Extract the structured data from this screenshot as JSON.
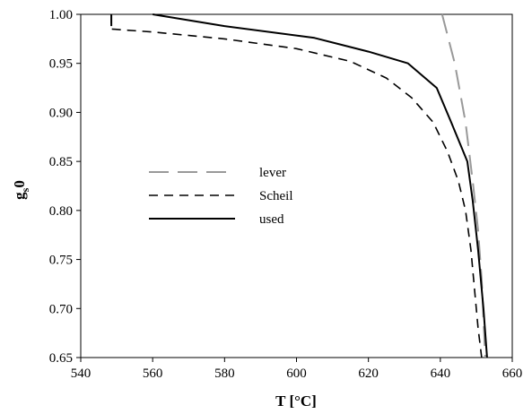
{
  "chart_data": {
    "type": "line",
    "title": "",
    "xlabel": "T [°C]",
    "ylabel_main": "g",
    "ylabel_sub": "s",
    "ylabel_tail": "0",
    "xlim": [
      540,
      660
    ],
    "ylim": [
      0.65,
      1.0
    ],
    "x_ticks": [
      540,
      560,
      580,
      600,
      620,
      640,
      660
    ],
    "y_ticks": [
      0.65,
      0.7,
      0.75,
      0.8,
      0.85,
      0.9,
      0.95,
      1.0
    ],
    "x_tick_labels": [
      "540",
      "560",
      "580",
      "600",
      "620",
      "640",
      "660"
    ],
    "y_tick_labels": [
      "0.65",
      "0.70",
      "0.75",
      "0.80",
      "0.85",
      "0.90",
      "0.95",
      "1.00"
    ],
    "grid": false,
    "legend_position": "middle-left",
    "series": [
      {
        "name": "lever",
        "style": "long-dash",
        "color": "#999999",
        "points": [
          [
            640.5,
            1.0
          ],
          [
            644,
            0.95
          ],
          [
            647,
            0.89
          ],
          [
            649,
            0.83
          ],
          [
            650.5,
            0.78
          ],
          [
            651.5,
            0.73
          ],
          [
            652.5,
            0.65
          ]
        ]
      },
      {
        "name": "Scheil",
        "style": "dash",
        "color": "#000000",
        "points": [
          [
            548.5,
            1.0
          ],
          [
            548.5,
            0.985
          ],
          [
            560,
            0.982
          ],
          [
            580,
            0.975
          ],
          [
            600,
            0.965
          ],
          [
            615,
            0.952
          ],
          [
            625,
            0.935
          ],
          [
            632,
            0.915
          ],
          [
            638,
            0.89
          ],
          [
            642,
            0.86
          ],
          [
            645,
            0.83
          ],
          [
            647,
            0.8
          ],
          [
            648.5,
            0.76
          ],
          [
            649.5,
            0.72
          ],
          [
            650.5,
            0.68
          ],
          [
            651.5,
            0.65
          ]
        ]
      },
      {
        "name": "used",
        "style": "solid",
        "color": "#000000",
        "points": [
          [
            548.5,
            1.0
          ],
          [
            548.5,
            0.988
          ]
        ],
        "points2": [
          [
            560,
            1.0
          ],
          [
            580,
            0.988
          ],
          [
            605,
            0.976
          ],
          [
            620,
            0.962
          ],
          [
            631,
            0.95
          ],
          [
            639,
            0.925
          ],
          [
            643,
            0.89
          ],
          [
            647.5,
            0.85
          ],
          [
            649,
            0.81
          ],
          [
            650.5,
            0.76
          ],
          [
            652,
            0.7
          ],
          [
            653,
            0.65
          ]
        ]
      }
    ]
  }
}
